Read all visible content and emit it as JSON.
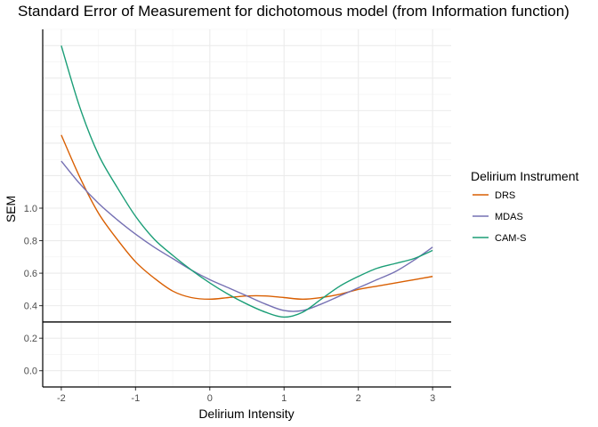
{
  "chart_data": {
    "type": "line",
    "title": "Standard Error of Measurement for dichotomous model (from Information function)",
    "xlabel": "Delirium Intensity",
    "ylabel": "SEM",
    "xlim": [
      -2.25,
      3.25
    ],
    "ylim": [
      -0.1,
      2.1
    ],
    "x_ticks": [
      "-2",
      "-1",
      "0",
      "1",
      "2",
      "3"
    ],
    "y_ticks": [
      "0.0",
      "0.2",
      "0.4",
      "0.6",
      "0.8",
      "1.0"
    ],
    "grid": true,
    "reference_line": {
      "y": 0.3,
      "color": "#000000"
    },
    "legend": {
      "title": "Delirium Instrument",
      "position": "right"
    },
    "x": [
      -2.0,
      -1.75,
      -1.5,
      -1.25,
      -1.0,
      -0.75,
      -0.5,
      -0.25,
      0.0,
      0.25,
      0.5,
      0.75,
      1.0,
      1.25,
      1.5,
      1.75,
      2.0,
      2.25,
      2.5,
      2.75,
      3.0
    ],
    "series": [
      {
        "name": "DRS",
        "color": "#D95F02",
        "values": [
          1.45,
          1.19,
          0.97,
          0.81,
          0.67,
          0.57,
          0.49,
          0.45,
          0.44,
          0.45,
          0.46,
          0.46,
          0.45,
          0.44,
          0.45,
          0.47,
          0.5,
          0.52,
          0.54,
          0.56,
          0.58
        ]
      },
      {
        "name": "MDAS",
        "color": "#7570B3",
        "values": [
          1.29,
          1.15,
          1.03,
          0.93,
          0.84,
          0.76,
          0.69,
          0.62,
          0.56,
          0.51,
          0.46,
          0.41,
          0.37,
          0.37,
          0.41,
          0.46,
          0.51,
          0.56,
          0.61,
          0.68,
          0.76
        ]
      },
      {
        "name": "CAM-S",
        "color": "#1B9E77",
        "values": [
          2.0,
          1.62,
          1.33,
          1.13,
          0.95,
          0.81,
          0.71,
          0.62,
          0.54,
          0.47,
          0.41,
          0.36,
          0.33,
          0.36,
          0.44,
          0.52,
          0.58,
          0.63,
          0.66,
          0.69,
          0.74
        ]
      }
    ]
  }
}
